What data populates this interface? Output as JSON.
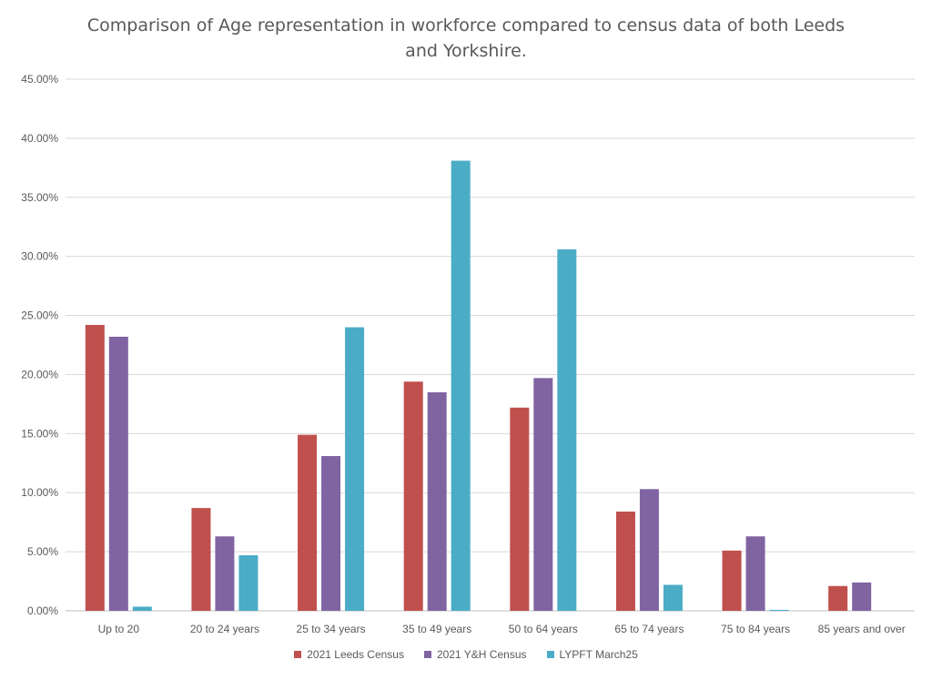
{
  "chart_data": {
    "type": "bar",
    "title_line1": "Comparison of Age representation in workforce compared to census data of both Leeds",
    "title_line2": "and Yorkshire.",
    "categories": [
      "Up to 20",
      "20 to 24 years",
      "25 to 34 years",
      "35 to 49 years",
      "50 to 64 years",
      "65 to 74 years",
      "75 to 84 years",
      "85 years and over"
    ],
    "series": [
      {
        "name": "2021 Leeds Census",
        "color": "#c0504d",
        "values": [
          24.2,
          8.7,
          14.9,
          19.4,
          17.2,
          8.4,
          5.1,
          2.1
        ]
      },
      {
        "name": "2021 Y&H Census",
        "color": "#8064a2",
        "values": [
          23.2,
          6.3,
          13.1,
          18.5,
          19.7,
          10.3,
          6.3,
          2.4
        ]
      },
      {
        "name": "LYPFT March25",
        "color": "#4bacc6",
        "values": [
          0.35,
          4.7,
          24.0,
          38.1,
          30.6,
          2.2,
          0.08,
          0
        ]
      }
    ],
    "yticks": [
      "0.00%",
      "5.00%",
      "10.00%",
      "15.00%",
      "20.00%",
      "25.00%",
      "30.00%",
      "35.00%",
      "40.00%",
      "45.00%"
    ],
    "ylim": [
      0,
      45
    ],
    "grid": true,
    "legend_position": "bottom"
  }
}
